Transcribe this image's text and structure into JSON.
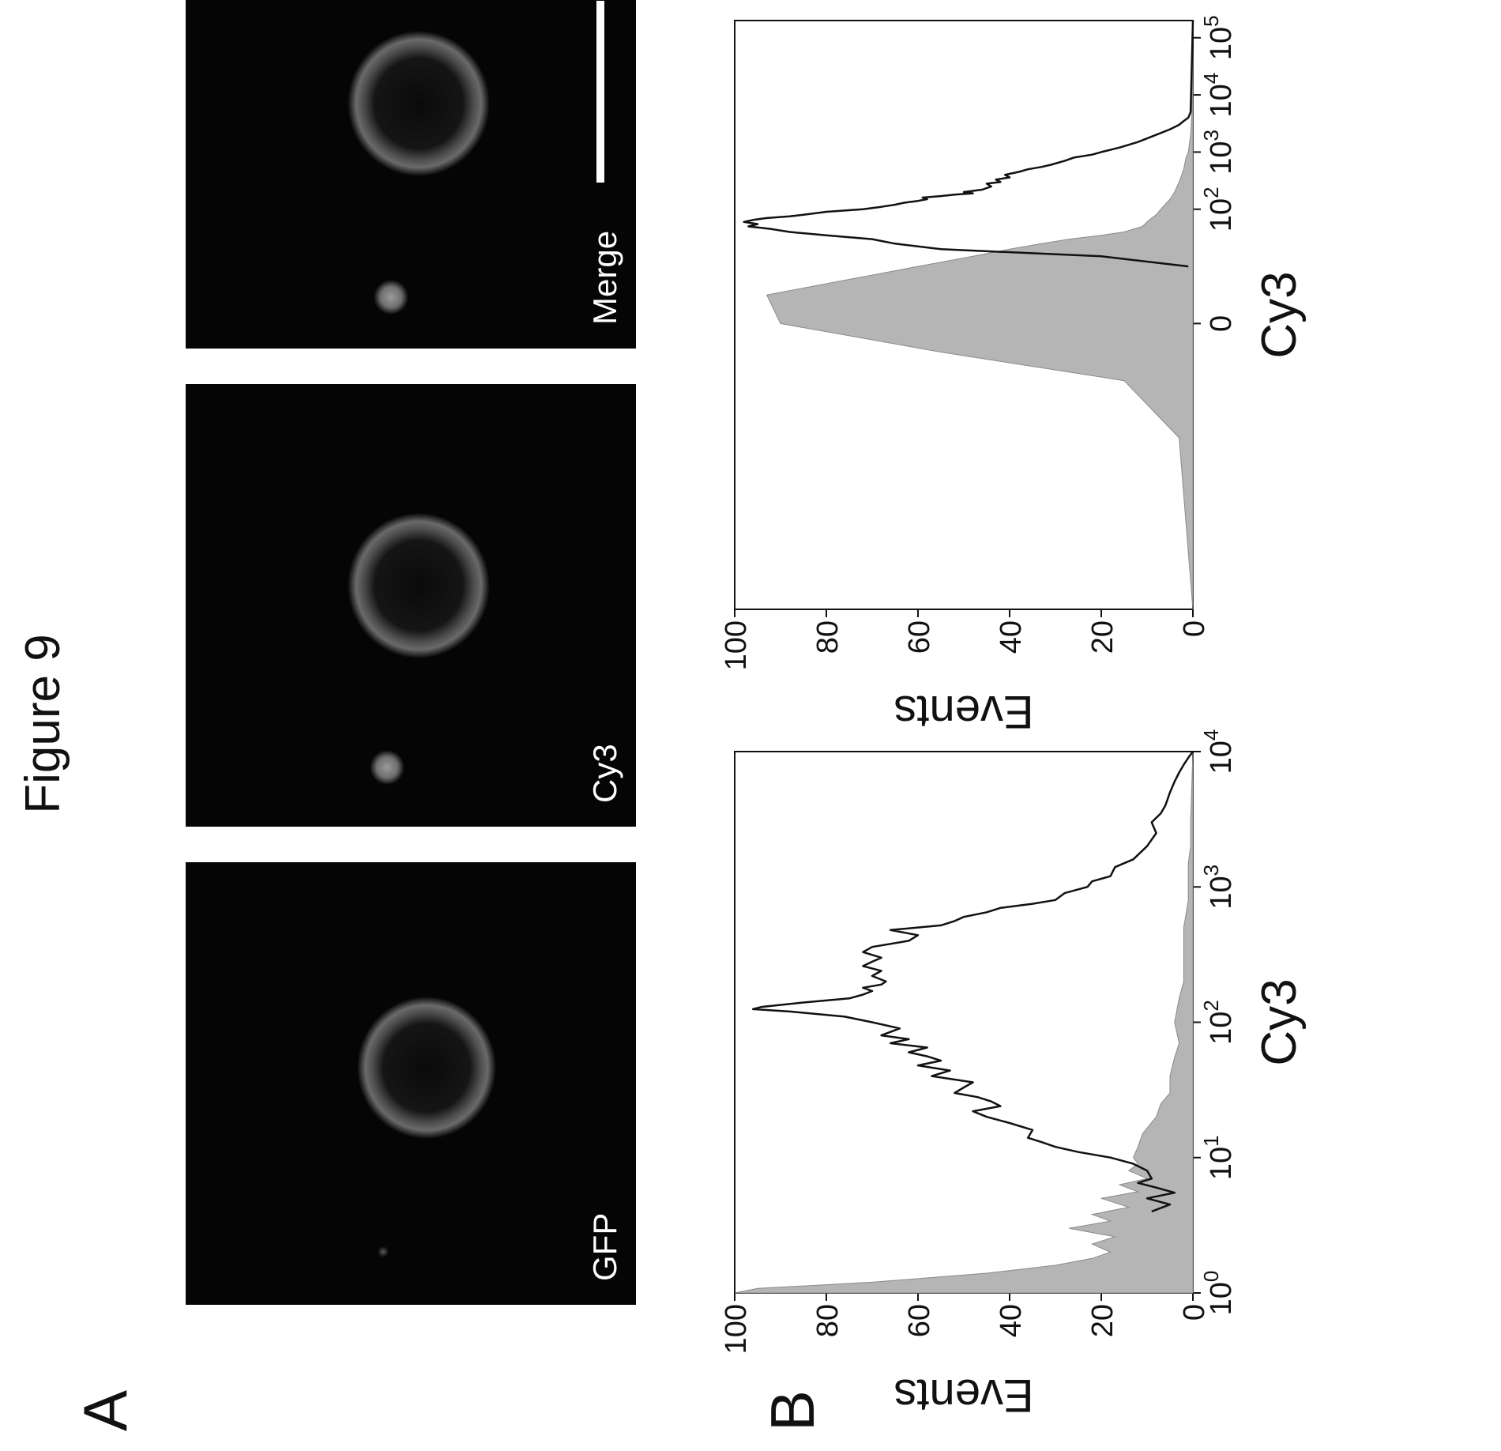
{
  "figure_title": "Figure 9",
  "panel_labels": {
    "a": "A",
    "b": "B"
  },
  "micrographs": [
    {
      "label": "GFP"
    },
    {
      "label": "Cy3"
    },
    {
      "label": "Merge"
    }
  ],
  "chart_data": [
    {
      "type": "area",
      "xscale": "log",
      "xlabel": "Cy3",
      "ylabel": "Events",
      "xlim": [
        1,
        10000
      ],
      "ylim": [
        0,
        100
      ],
      "xticks": [
        {
          "v": 1,
          "base": "10",
          "exp": "0"
        },
        {
          "v": 10,
          "base": "10",
          "exp": "1"
        },
        {
          "v": 100,
          "base": "10",
          "exp": "2"
        },
        {
          "v": 1000,
          "base": "10",
          "exp": "3"
        },
        {
          "v": 10000,
          "base": "10",
          "exp": "4"
        }
      ],
      "yticks": [
        0,
        20,
        40,
        60,
        80,
        100
      ],
      "series": [
        {
          "style": "filled-gray",
          "x": [
            1.0,
            1.08,
            1.2,
            1.4,
            1.6,
            1.8,
            2.0,
            2.3,
            2.6,
            3.0,
            3.4,
            3.8,
            4.3,
            5.0,
            5.6,
            6.3,
            7.0,
            8.0,
            9.0,
            10.0,
            12,
            15,
            20,
            25,
            30,
            40,
            55,
            70,
            100,
            150,
            200,
            300,
            500,
            800,
            1000,
            1500,
            2000,
            3000,
            5000,
            10000
          ],
          "y": [
            100,
            95,
            70,
            45,
            30,
            22,
            18,
            22,
            17,
            27,
            18,
            22,
            14,
            20,
            12,
            16,
            10,
            14,
            12,
            13,
            12,
            11,
            8,
            7,
            5,
            5,
            4,
            3,
            4,
            3,
            2,
            2,
            2,
            1,
            1,
            1,
            0.5,
            0.5,
            0.3,
            0
          ]
        },
        {
          "style": "line",
          "x": [
            4.0,
            4.5,
            5.0,
            5.5,
            6.0,
            6.5,
            7.0,
            8.0,
            9.0,
            10.0,
            11,
            12,
            13,
            14,
            16,
            18,
            20,
            22,
            24,
            26,
            28,
            30,
            33,
            36,
            40,
            44,
            48,
            52,
            56,
            60,
            65,
            70,
            75,
            80,
            90,
            100,
            110,
            120,
            125,
            130,
            140,
            150,
            160,
            170,
            180,
            190,
            200,
            220,
            240,
            260,
            280,
            300,
            330,
            360,
            400,
            440,
            480,
            520,
            560,
            600,
            650,
            700,
            750,
            800,
            900,
            1000,
            1100,
            1200,
            1400,
            1600,
            2000,
            2500,
            3000,
            3500,
            4000,
            5000,
            6000,
            7000,
            8000,
            9000,
            10000
          ],
          "y": [
            9,
            5,
            10,
            4,
            8,
            12,
            9,
            10,
            13,
            18,
            25,
            30,
            33,
            36,
            35,
            40,
            45,
            48,
            42,
            44,
            47,
            52,
            50,
            48,
            57,
            53,
            60,
            55,
            58,
            62,
            58,
            66,
            62,
            68,
            64,
            70,
            76,
            88,
            96,
            94,
            85,
            75,
            72,
            70,
            72,
            68,
            67,
            70,
            68,
            72,
            70,
            68,
            72,
            70,
            62,
            60,
            66,
            55,
            52,
            50,
            45,
            42,
            35,
            30,
            28,
            23,
            22,
            18,
            17,
            13,
            10,
            8,
            9,
            7,
            6,
            5,
            4,
            3,
            2,
            1,
            0
          ]
        }
      ]
    },
    {
      "type": "area",
      "xscale": "biexponential",
      "xlabel": "Cy3",
      "ylabel": "Events",
      "xlim": [
        -50,
        200000
      ],
      "ylim": [
        0,
        100
      ],
      "xticks": [
        {
          "v": 0,
          "base": "0",
          "exp": ""
        },
        {
          "v": 100,
          "base": "10",
          "exp": "2"
        },
        {
          "v": 1000,
          "base": "10",
          "exp": "3"
        },
        {
          "v": 10000,
          "base": "10",
          "exp": "4"
        },
        {
          "v": 100000,
          "base": "10",
          "exp": "5"
        }
      ],
      "yticks": [
        0,
        20,
        40,
        60,
        80,
        100
      ],
      "series": [
        {
          "style": "filled-gray",
          "x": [
            -50,
            -20,
            -10,
            -5,
            0,
            5,
            10,
            15,
            20,
            25,
            30,
            35,
            40,
            50,
            60,
            70,
            80,
            100,
            150,
            200,
            300,
            500,
            800,
            1000,
            2000,
            5000,
            200000
          ],
          "y": [
            0,
            3,
            15,
            55,
            90,
            93,
            60,
            48,
            40,
            33,
            27,
            20,
            15,
            11,
            10,
            9,
            8,
            7,
            5,
            4,
            3,
            2,
            1.5,
            1,
            0.5,
            0.2,
            0
          ]
        },
        {
          "style": "line",
          "x": [
            10,
            15,
            20,
            25,
            30,
            35,
            40,
            45,
            50,
            55,
            60,
            65,
            70,
            75,
            80,
            90,
            100,
            110,
            120,
            130,
            140,
            150,
            160,
            170,
            180,
            190,
            200,
            220,
            250,
            280,
            300,
            330,
            360,
            400,
            450,
            500,
            550,
            600,
            700,
            800,
            900,
            1000,
            1200,
            1500,
            2000,
            2500,
            3000,
            3500,
            4000,
            5000,
            200000
          ],
          "y": [
            1,
            20,
            55,
            65,
            70,
            80,
            88,
            92,
            97,
            95,
            98,
            96,
            93,
            88,
            85,
            80,
            72,
            68,
            65,
            63,
            60,
            58,
            59,
            55,
            52,
            48,
            50,
            46,
            44,
            45,
            42,
            43,
            40,
            41,
            38,
            36,
            33,
            31,
            28,
            26,
            22,
            20,
            16,
            12,
            8,
            5,
            3,
            2,
            1,
            0.5,
            0
          ]
        }
      ]
    }
  ]
}
